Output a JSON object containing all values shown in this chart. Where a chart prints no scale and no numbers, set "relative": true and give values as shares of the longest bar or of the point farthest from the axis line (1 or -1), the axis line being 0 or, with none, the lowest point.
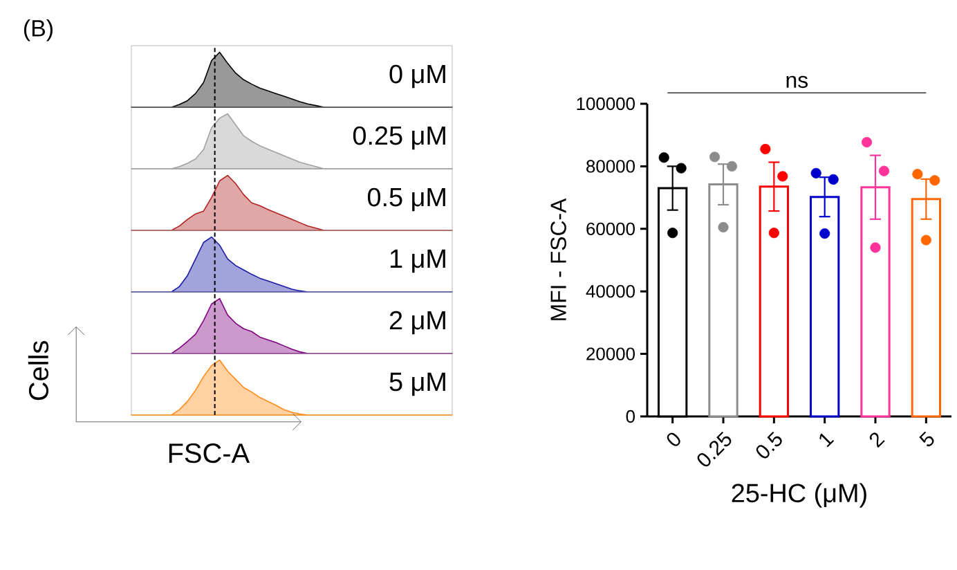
{
  "chart_data": [
    {
      "type": "area",
      "relative": true,
      "title": "0 μM",
      "annotations": [
        "(B)"
      ],
      "color": "#000000",
      "categories": [
        null,
        null,
        null,
        null,
        null,
        null,
        null,
        null,
        null,
        null,
        null,
        null,
        null,
        null,
        null,
        null,
        null,
        null,
        null,
        null,
        null,
        null,
        null,
        null,
        null,
        null,
        null,
        null,
        null,
        null,
        null,
        null,
        null,
        null,
        null,
        null,
        null,
        null,
        null,
        null,
        null
      ],
      "values": [
        0,
        0,
        0,
        0,
        0,
        0,
        0.05,
        0.12,
        0.25,
        0.45,
        0.85,
        1,
        0.8,
        0.62,
        0.5,
        0.42,
        0.35,
        0.3,
        0.25,
        0.2,
        0.15,
        0.1,
        0.06,
        0.03,
        0,
        0,
        0,
        0,
        0,
        0,
        0,
        0,
        0,
        0,
        0,
        0,
        0,
        0,
        0,
        0,
        0
      ]
    },
    {
      "type": "area",
      "relative": true,
      "title": "0.25 μM",
      "color": "#a0a0a0",
      "categories": [
        null,
        null,
        null,
        null,
        null,
        null,
        null,
        null,
        null,
        null,
        null,
        null,
        null,
        null,
        null,
        null,
        null,
        null,
        null,
        null,
        null,
        null,
        null,
        null,
        null,
        null,
        null,
        null,
        null,
        null,
        null,
        null,
        null,
        null,
        null,
        null,
        null,
        null,
        null,
        null,
        null
      ],
      "values": [
        0,
        0,
        0,
        0,
        0,
        0,
        0.04,
        0.1,
        0.18,
        0.35,
        0.75,
        0.92,
        1,
        0.8,
        0.6,
        0.5,
        0.42,
        0.36,
        0.3,
        0.24,
        0.18,
        0.12,
        0.08,
        0.04,
        0,
        0,
        0,
        0,
        0,
        0,
        0,
        0,
        0,
        0,
        0,
        0,
        0,
        0,
        0,
        0,
        0
      ]
    },
    {
      "type": "area",
      "relative": true,
      "title": "0.5 μM",
      "color": "#b22222",
      "categories": [
        null,
        null,
        null,
        null,
        null,
        null,
        null,
        null,
        null,
        null,
        null,
        null,
        null,
        null,
        null,
        null,
        null,
        null,
        null,
        null,
        null,
        null,
        null,
        null,
        null,
        null,
        null,
        null,
        null,
        null,
        null,
        null,
        null,
        null,
        null,
        null,
        null,
        null,
        null,
        null,
        null
      ],
      "values": [
        0,
        0,
        0,
        0,
        0,
        0,
        0.08,
        0.2,
        0.3,
        0.35,
        0.6,
        0.9,
        1,
        0.85,
        0.65,
        0.5,
        0.45,
        0.38,
        0.32,
        0.26,
        0.2,
        0.14,
        0.08,
        0.04,
        0,
        0,
        0,
        0,
        0,
        0,
        0,
        0,
        0,
        0,
        0,
        0,
        0,
        0,
        0,
        0,
        0
      ]
    },
    {
      "type": "area",
      "relative": true,
      "title": "1 μM",
      "color": "#1a1aa6",
      "categories": [
        null,
        null,
        null,
        null,
        null,
        null,
        null,
        null,
        null,
        null,
        null,
        null,
        null,
        null,
        null,
        null,
        null,
        null,
        null,
        null,
        null,
        null,
        null,
        null,
        null,
        null,
        null,
        null,
        null,
        null,
        null,
        null,
        null,
        null,
        null,
        null,
        null,
        null,
        null,
        null,
        null
      ],
      "values": [
        0,
        0,
        0,
        0,
        0,
        0,
        0.1,
        0.3,
        0.6,
        0.9,
        1,
        0.85,
        0.6,
        0.48,
        0.4,
        0.32,
        0.25,
        0.2,
        0.15,
        0.1,
        0.05,
        0.02,
        0,
        0,
        0,
        0,
        0,
        0,
        0,
        0,
        0,
        0,
        0,
        0,
        0,
        0,
        0,
        0,
        0,
        0,
        0
      ]
    },
    {
      "type": "area",
      "relative": true,
      "title": "2 μM",
      "color": "#800080",
      "categories": [
        null,
        null,
        null,
        null,
        null,
        null,
        null,
        null,
        null,
        null,
        null,
        null,
        null,
        null,
        null,
        null,
        null,
        null,
        null,
        null,
        null,
        null,
        null,
        null,
        null,
        null,
        null,
        null,
        null,
        null,
        null,
        null,
        null,
        null,
        null,
        null,
        null,
        null,
        null,
        null,
        null
      ],
      "values": [
        0,
        0,
        0,
        0,
        0,
        0,
        0.1,
        0.22,
        0.35,
        0.6,
        0.9,
        1,
        0.7,
        0.55,
        0.45,
        0.4,
        0.3,
        0.25,
        0.2,
        0.14,
        0.08,
        0.03,
        0,
        0,
        0,
        0,
        0,
        0,
        0,
        0,
        0,
        0,
        0,
        0,
        0,
        0,
        0,
        0,
        0,
        0,
        0
      ]
    },
    {
      "type": "area",
      "relative": true,
      "title": "5 μM",
      "xlabel": "FSC-A",
      "ylabel": "Cells",
      "color": "#ff8c1a",
      "categories": [
        null,
        null,
        null,
        null,
        null,
        null,
        null,
        null,
        null,
        null,
        null,
        null,
        null,
        null,
        null,
        null,
        null,
        null,
        null,
        null,
        null,
        null,
        null,
        null,
        null,
        null,
        null,
        null,
        null,
        null,
        null,
        null,
        null,
        null,
        null,
        null,
        null,
        null,
        null,
        null,
        null
      ],
      "values": [
        0,
        0,
        0,
        0,
        0,
        0,
        0.1,
        0.25,
        0.45,
        0.7,
        0.9,
        1,
        0.8,
        0.65,
        0.5,
        0.42,
        0.32,
        0.25,
        0.18,
        0.1,
        0.05,
        0.02,
        0,
        0,
        0,
        0,
        0,
        0,
        0,
        0,
        0,
        0,
        0,
        0,
        0,
        0,
        0,
        0,
        0,
        0,
        0
      ]
    },
    {
      "type": "bar",
      "categories": [
        "0",
        "0.25",
        "0.5",
        "1",
        "2",
        "5"
      ],
      "xlabel": "25-HC (μM)",
      "ylabel": "MFI - FSC-A",
      "annotations": [
        "ns"
      ],
      "ylim": [
        0,
        100000
      ],
      "yticks": [
        0,
        20000,
        40000,
        60000,
        80000,
        100000
      ],
      "series": [
        {
          "type": "bar",
          "values": [
            73000,
            74200,
            73500,
            70200,
            73300,
            69500
          ],
          "errors": [
            7000,
            6500,
            7800,
            6300,
            10200,
            6400
          ],
          "colors": [
            "#000000",
            "#8c8c8c",
            "#ff0000",
            "#0000cc",
            "#ff3399",
            "#ff6600"
          ]
        },
        {
          "type": "scatter",
          "marker": "circle",
          "x": [
            "0",
            "0",
            "0",
            "0.25",
            "0.25",
            "0.25",
            "0.5",
            "0.5",
            "0.5",
            "1",
            "1",
            "1",
            "2",
            "2",
            "2",
            "5",
            "5",
            "5"
          ],
          "values": [
            82800,
            79400,
            58700,
            83000,
            80000,
            60500,
            85500,
            76800,
            58700,
            77800,
            75800,
            58500,
            87700,
            78500,
            54000,
            77500,
            75500,
            56400
          ],
          "colors": [
            "#000000",
            "#000000",
            "#000000",
            "#8c8c8c",
            "#8c8c8c",
            "#8c8c8c",
            "#ff0000",
            "#ff0000",
            "#ff0000",
            "#0000cc",
            "#0000cc",
            "#0000cc",
            "#ff3399",
            "#ff3399",
            "#ff3399",
            "#ff6600",
            "#ff6600",
            "#ff6600"
          ]
        }
      ]
    }
  ]
}
